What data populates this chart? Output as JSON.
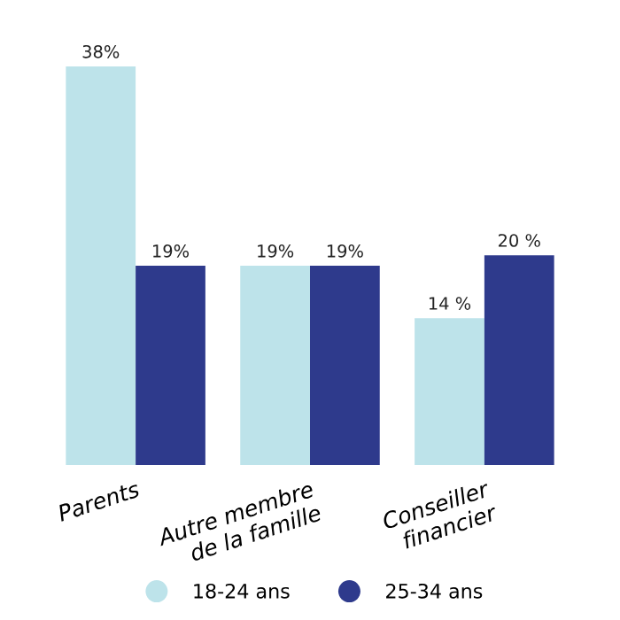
{
  "chart_data": {
    "type": "bar",
    "categories": [
      "Parents",
      "Autre membre\nde la famille",
      "Conseiller\nfinancier"
    ],
    "series": [
      {
        "name": "18-24 ans",
        "color": "#bde3ea",
        "values": [
          38,
          19,
          14
        ],
        "value_labels": [
          "38%",
          "19%",
          "14 %"
        ]
      },
      {
        "name": "25-34 ans",
        "color": "#2e3a8c",
        "values": [
          19,
          19,
          20
        ],
        "value_labels": [
          "19%",
          "19%",
          "20 %"
        ]
      }
    ],
    "legend": "bottom"
  }
}
